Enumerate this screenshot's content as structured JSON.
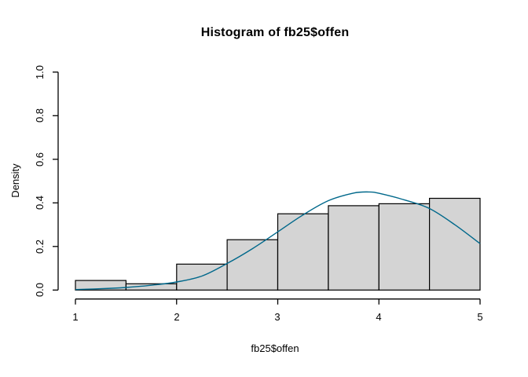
{
  "figure": {
    "background": "#ffffff"
  },
  "chart_data": {
    "type": "bar",
    "subtype": "histogram-with-density-curve",
    "title": "Histogram of fb25$offen",
    "xlabel": "fb25$offen",
    "ylabel": "Density",
    "xlim": [
      1,
      5
    ],
    "ylim": [
      0,
      1.0
    ],
    "grid": false,
    "legend": null,
    "x_tick_values": [
      1,
      2,
      3,
      4,
      5
    ],
    "x_tick_labels": [
      "1",
      "2",
      "3",
      "4",
      "5"
    ],
    "y_tick_values": [
      0.0,
      0.2,
      0.4,
      0.6,
      0.8,
      1.0
    ],
    "y_tick_labels": [
      "0.0",
      "0.2",
      "0.4",
      "0.6",
      "0.8",
      "1.0"
    ],
    "bin_width": 0.5,
    "bins": [
      {
        "start": 1.0,
        "end": 1.5,
        "density": 0.044
      },
      {
        "start": 1.5,
        "end": 2.0,
        "density": 0.029
      },
      {
        "start": 2.0,
        "end": 2.5,
        "density": 0.119
      },
      {
        "start": 2.5,
        "end": 3.0,
        "density": 0.231
      },
      {
        "start": 3.0,
        "end": 3.5,
        "density": 0.35
      },
      {
        "start": 3.5,
        "end": 4.0,
        "density": 0.387
      },
      {
        "start": 4.0,
        "end": 4.5,
        "density": 0.396
      },
      {
        "start": 4.5,
        "end": 5.0,
        "density": 0.421
      }
    ],
    "density_curve": [
      [
        1.0,
        0.002
      ],
      [
        1.25,
        0.006
      ],
      [
        1.5,
        0.012
      ],
      [
        1.75,
        0.022
      ],
      [
        2.0,
        0.037
      ],
      [
        2.25,
        0.064
      ],
      [
        2.5,
        0.122
      ],
      [
        2.75,
        0.19
      ],
      [
        3.0,
        0.267
      ],
      [
        3.25,
        0.345
      ],
      [
        3.5,
        0.41
      ],
      [
        3.75,
        0.445
      ],
      [
        3.9,
        0.45
      ],
      [
        4.0,
        0.444
      ],
      [
        4.25,
        0.414
      ],
      [
        4.5,
        0.374
      ],
      [
        4.75,
        0.3
      ],
      [
        5.0,
        0.213
      ]
    ],
    "colors": {
      "bar_fill": "#d4d4d4",
      "bar_border": "#000000",
      "curve": "#00688b",
      "axis": "#000000",
      "text": "#000000"
    }
  }
}
